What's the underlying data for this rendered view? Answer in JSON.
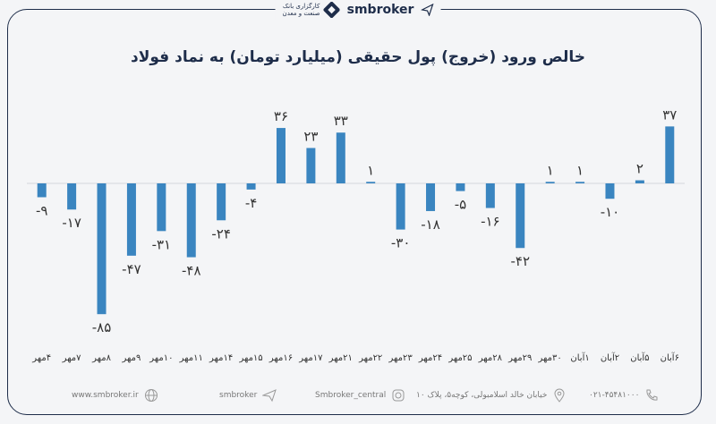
{
  "header": {
    "brand": "smbroker",
    "logo_line1": "کارگزاری بانک",
    "logo_line2": "صنعت و معدن"
  },
  "chart_data": {
    "type": "bar",
    "title": "خالص ورود (خروج) پول حقیقی (میلیارد تومان) به نماد فولاد",
    "categories": [
      "۴مهر",
      "۷مهر",
      "۸مهر",
      "۹مهر",
      "۱۰مهر",
      "۱۱مهر",
      "۱۴مهر",
      "۱۵مهر",
      "۱۶مهر",
      "۱۷مهر",
      "۲۱مهر",
      "۲۲مهر",
      "۲۳مهر",
      "۲۴مهر",
      "۲۵مهر",
      "۲۸مهر",
      "۲۹مهر",
      "۳۰مهر",
      "۱آبان",
      "۲آبان",
      "۵آبان",
      "۶آبان"
    ],
    "values": [
      -9,
      -17,
      -85,
      -47,
      -31,
      -48,
      -24,
      -4,
      36,
      23,
      33,
      1,
      -30,
      -18,
      -5,
      -16,
      -42,
      1,
      1,
      -10,
      2,
      37
    ],
    "value_labels": [
      "-۹",
      "-۱۷",
      "-۸۵",
      "-۴۷",
      "-۳۱",
      "-۴۸",
      "-۲۴",
      "-۴",
      "۳۶",
      "۲۳",
      "۳۳",
      "۱",
      "-۳۰",
      "-۱۸",
      "-۵",
      "-۱۶",
      "-۴۲",
      "۱",
      "۱",
      "-۱۰",
      "۲",
      "۳۷"
    ],
    "ylim": [
      -90,
      40
    ],
    "colors": {
      "bar": "#3a85c0",
      "label": "#333333",
      "baseline": "#d5d8dd"
    }
  },
  "footer": {
    "website": "www.smbroker.ir",
    "telegram": "smbroker",
    "instagram": "Smbroker_central",
    "address": "خیابان خالد اسلامبولی، کوچه۵، پلاک ۱۰",
    "phone": "۰۲۱-۴۵۴۸۱۰۰۰"
  }
}
